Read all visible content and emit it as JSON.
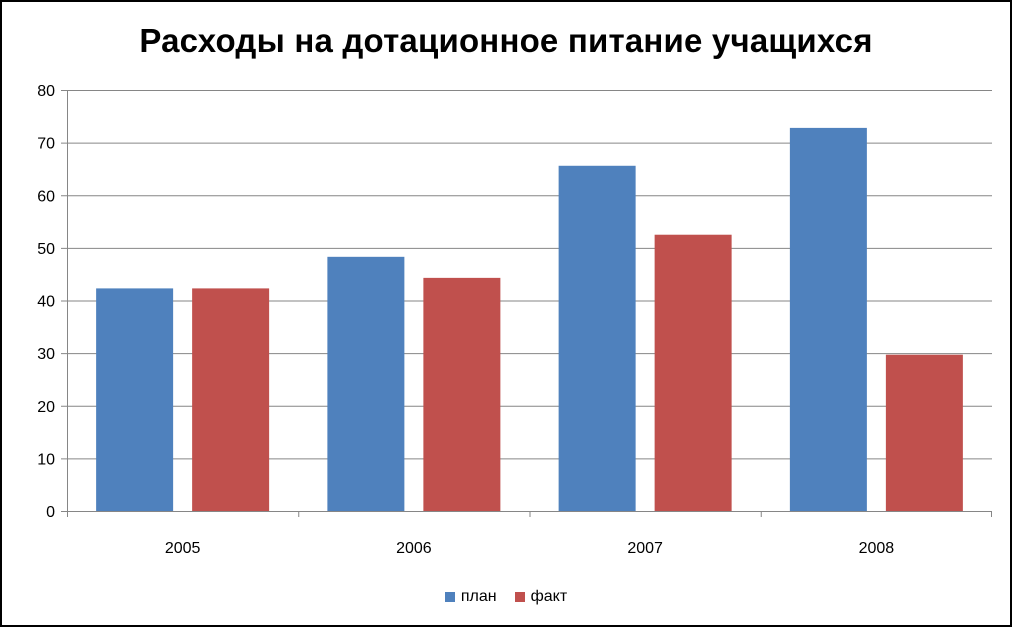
{
  "chart_data": {
    "type": "bar",
    "title": "Расходы на дотационное питание учащихся",
    "categories": [
      "2005",
      "2006",
      "2007",
      "2008"
    ],
    "series": [
      {
        "name": "план",
        "values": [
          42.3,
          48.3,
          65.6,
          72.8
        ],
        "color": "#4F81BD"
      },
      {
        "name": "факт",
        "values": [
          42.3,
          44.3,
          52.5,
          29.7
        ],
        "color": "#C0504D"
      }
    ],
    "ylim": [
      0,
      80
    ],
    "yticks": [
      0,
      10,
      20,
      30,
      40,
      50,
      60,
      70,
      80
    ],
    "grid": true,
    "legend_position": "bottom"
  }
}
